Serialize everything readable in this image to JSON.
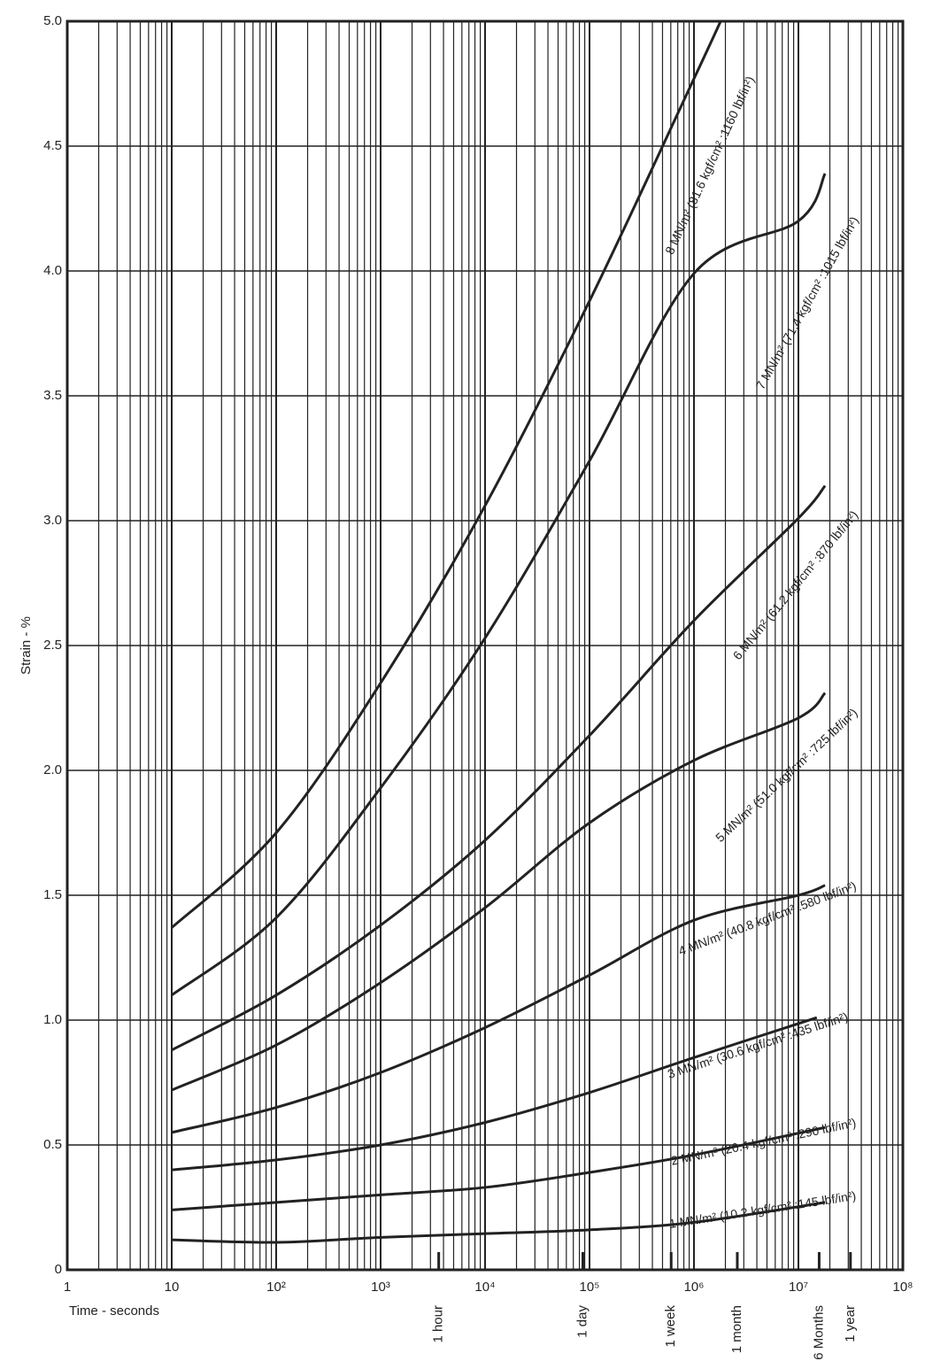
{
  "chart_data": {
    "type": "line",
    "y_label": "Strain - %",
    "x_label": "Time - seconds",
    "x_scale": "log",
    "grid": true,
    "color": "#222222",
    "xlim": [
      1,
      100000000
    ],
    "ylim": [
      0,
      5
    ],
    "xticks": [
      1,
      10,
      {
        "value": 100,
        "label": "10²"
      },
      {
        "value": 1000,
        "label": "10³"
      },
      {
        "value": 10000,
        "label": "10⁴"
      },
      {
        "value": 100000,
        "label": "10⁵"
      },
      {
        "value": 1000000,
        "label": "10⁶"
      },
      {
        "value": 10000000,
        "label": "10⁷"
      },
      {
        "value": 100000000,
        "label": "10⁸"
      }
    ],
    "yticks": [
      0,
      0.5,
      {
        "value": 1,
        "label": "1.0"
      },
      1.5,
      {
        "value": 2,
        "label": "2.0"
      },
      2.5,
      {
        "value": 3,
        "label": "3.0"
      },
      3.5,
      {
        "value": 4,
        "label": "4.0"
      },
      4.5,
      {
        "value": 5,
        "label": "5.0"
      }
    ],
    "annotations": [
      {
        "value": 3600,
        "label": "1 hour"
      },
      {
        "value": 86400,
        "label": "1 day"
      },
      {
        "value": 604800,
        "label": "1 week"
      },
      {
        "value": 2600000,
        "label": "1 month"
      },
      {
        "value": 15800000,
        "label": "6 Months"
      },
      {
        "value": 31500000,
        "label": "1 year"
      }
    ],
    "series": [
      {
        "name": "8 MN/m² (81.6 kgf/cm² :1160 lbf/in²)",
        "x": [
          10,
          100,
          1000,
          10000,
          100000,
          1000000,
          1800000
        ],
        "values": [
          1.37,
          1.75,
          2.35,
          3.06,
          3.88,
          4.77,
          5.0
        ]
      },
      {
        "name": "7 MN/m² (71.4 kgf/cm² :1015 lbf/in²)",
        "x": [
          10,
          100,
          1000,
          10000,
          100000,
          1000000,
          10000000,
          18000000
        ],
        "values": [
          1.1,
          1.41,
          1.93,
          2.53,
          3.24,
          3.99,
          4.2,
          4.39
        ]
      },
      {
        "name": "6 MN/m² (61.2 kgf/cm² :870 lbf/in²)",
        "x": [
          10,
          100,
          1000,
          10000,
          100000,
          1000000,
          10000000,
          18000000
        ],
        "values": [
          0.88,
          1.1,
          1.38,
          1.72,
          2.14,
          2.6,
          3.01,
          3.14
        ]
      },
      {
        "name": "5 MN/m² (51.0 kgf/cm² :725 lbf/in²)",
        "x": [
          10,
          100,
          1000,
          10000,
          100000,
          1000000,
          10000000,
          18000000
        ],
        "values": [
          0.72,
          0.9,
          1.15,
          1.45,
          1.79,
          2.04,
          2.21,
          2.31
        ]
      },
      {
        "name": "4 MN/m² (40.8 kgf/cm² :580 lbf/in²)",
        "x": [
          10,
          100,
          1000,
          10000,
          100000,
          1000000,
          10000000,
          18000000
        ],
        "values": [
          0.55,
          0.65,
          0.79,
          0.97,
          1.18,
          1.4,
          1.5,
          1.54
        ]
      },
      {
        "name": "3 MN/m² (30.6 kgf/cm² :435 lbf/in²)",
        "x": [
          10,
          100,
          1000,
          10000,
          100000,
          1000000,
          15000000
        ],
        "values": [
          0.4,
          0.44,
          0.5,
          0.59,
          0.71,
          0.85,
          1.01
        ]
      },
      {
        "name": "2 MN/m² (20.4 kgf/cm² :290 lbf/in²)",
        "x": [
          10,
          100,
          1000,
          10000,
          100000,
          1000000,
          18000000
        ],
        "values": [
          0.24,
          0.27,
          0.3,
          0.33,
          0.39,
          0.46,
          0.57
        ]
      },
      {
        "name": "1 MN/m² (10.2 kgf/cm² :145 lbf/in²)",
        "x": [
          10,
          100,
          1000,
          10000,
          100000,
          1000000,
          18000000
        ],
        "values": [
          0.12,
          0.11,
          0.13,
          0.145,
          0.16,
          0.19,
          0.27
        ]
      }
    ]
  }
}
